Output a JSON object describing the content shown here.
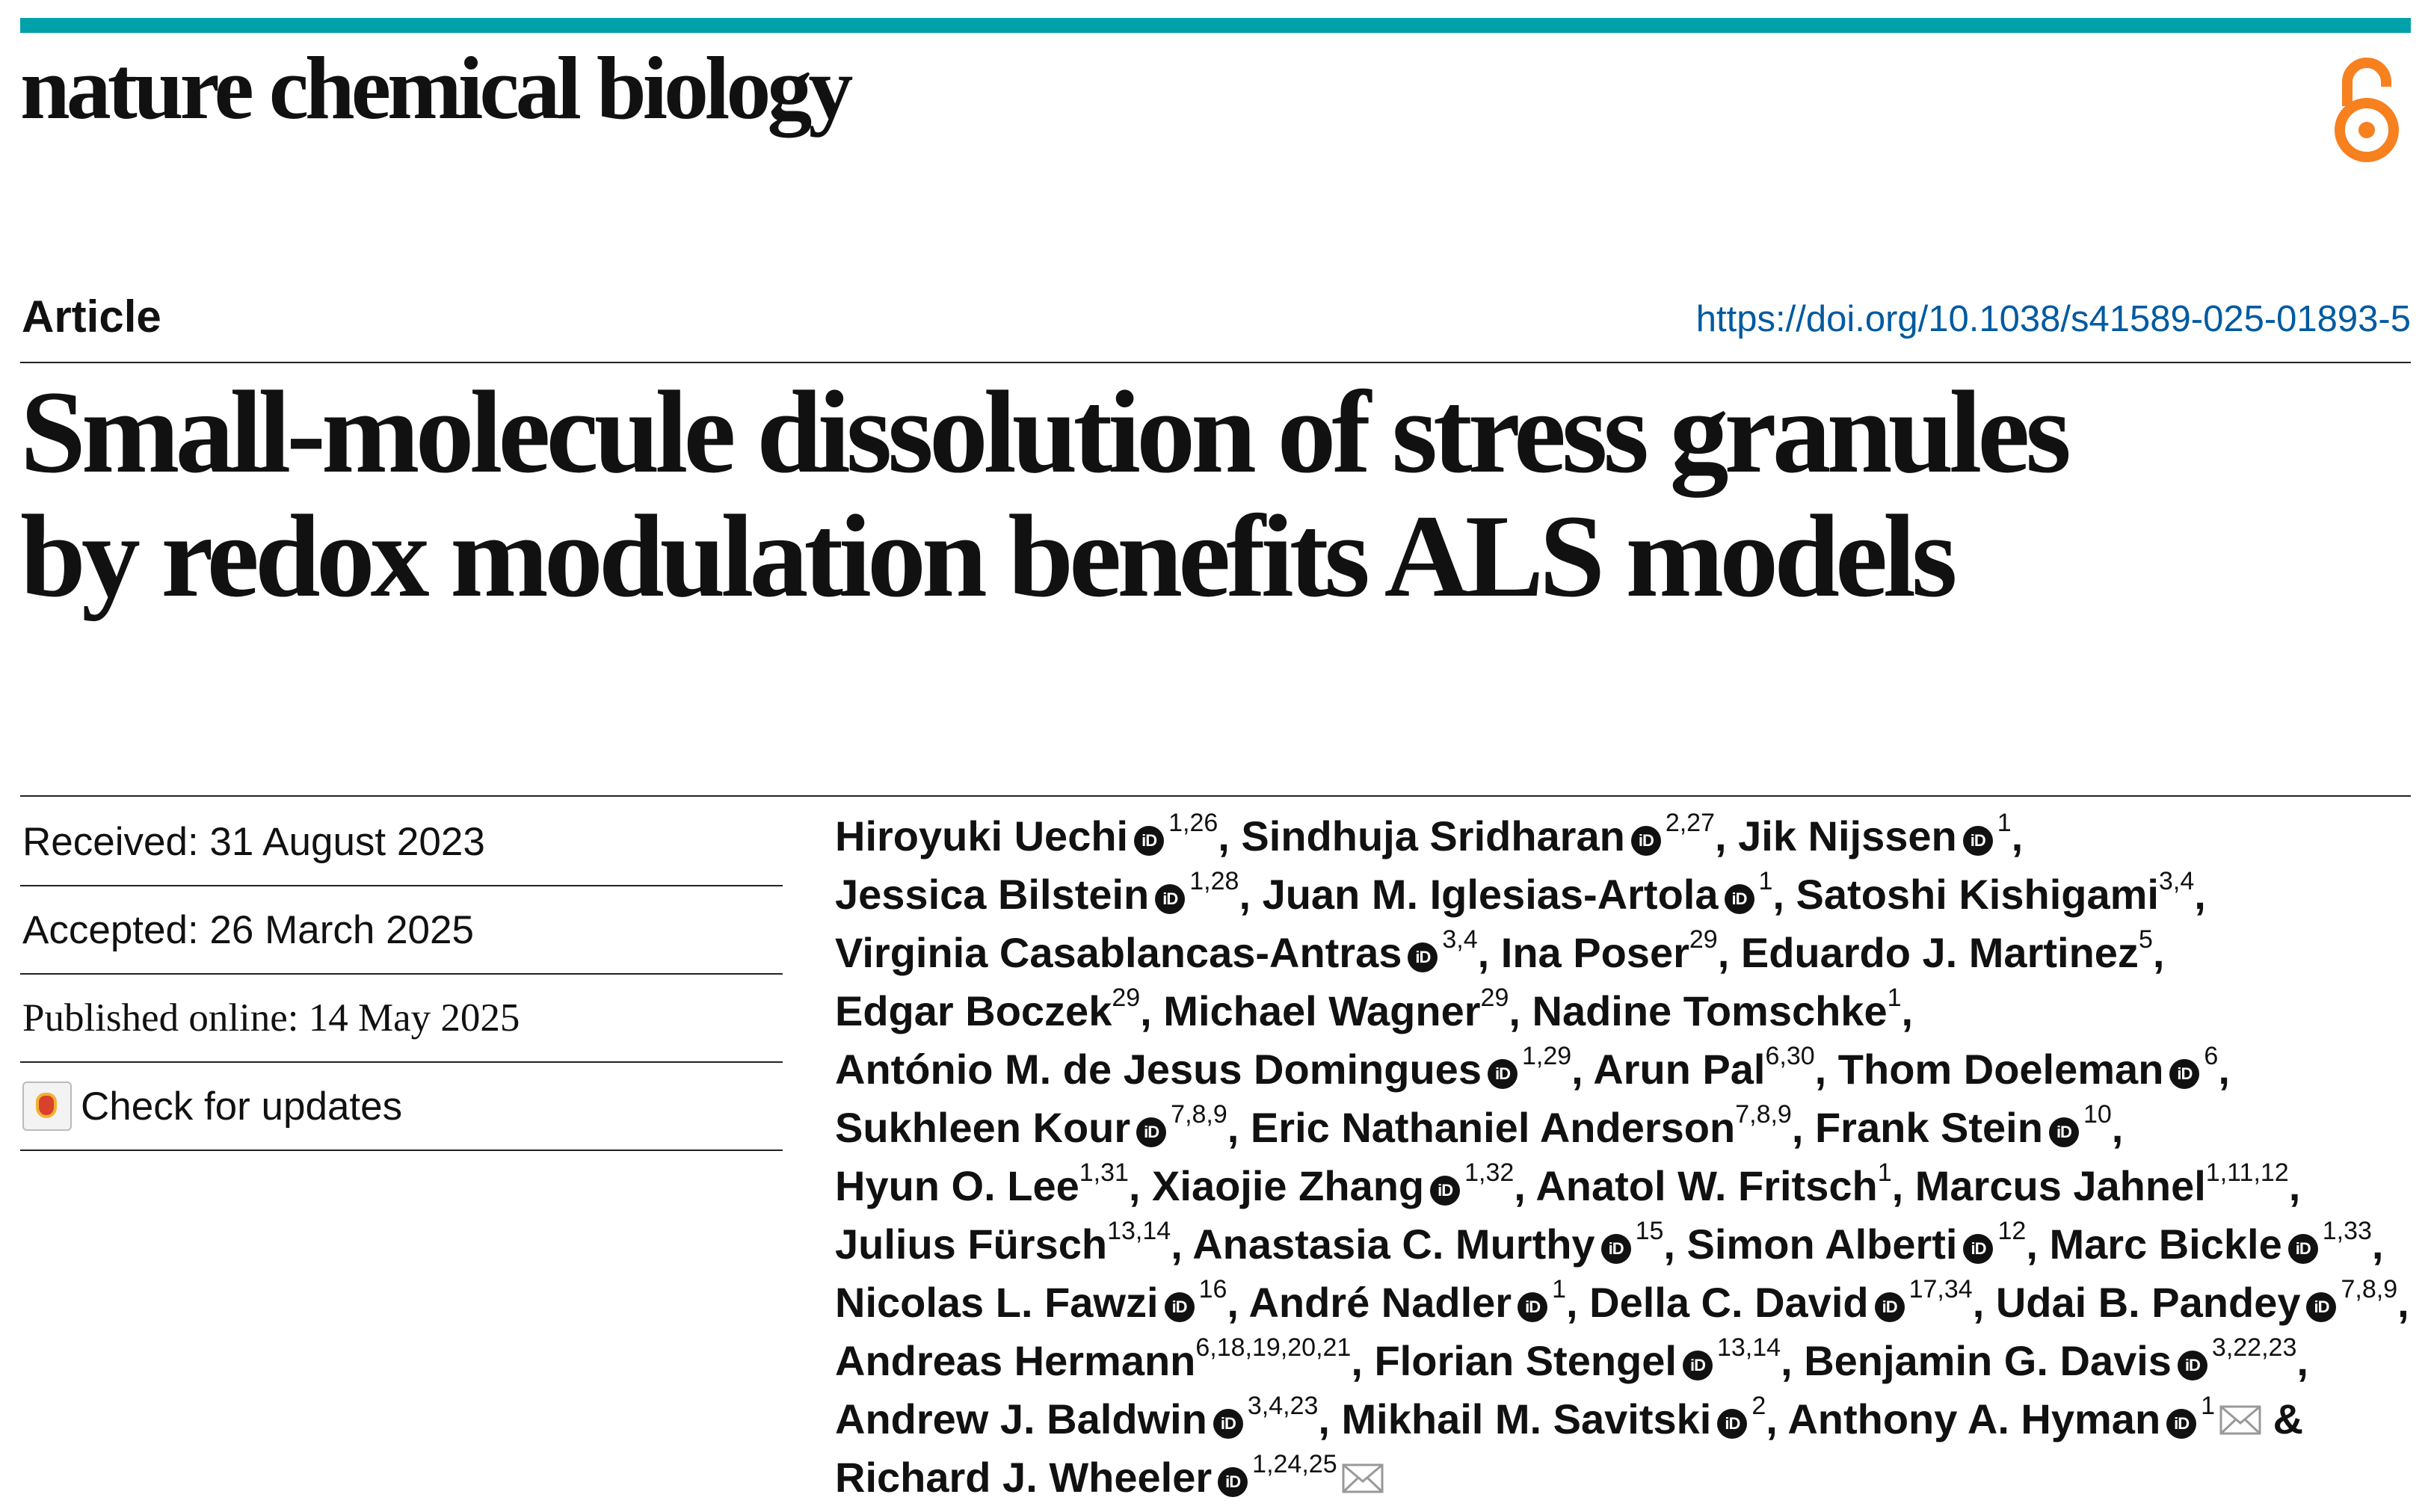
{
  "header": {
    "journal_name": "nature chemical biology",
    "accent_color": "#00a1a9",
    "open_access_icon": "open-access-lock-icon",
    "open_access_color": "#f7801f"
  },
  "article": {
    "type": "Article",
    "doi": "https://doi.org/10.1038/s41589-025-01893-5",
    "title_line1": "Small-molecule dissolution of stress granules",
    "title_line2": "by redox modulation benefits ALS models"
  },
  "dates": {
    "received": "Received: 31 August 2023",
    "accepted": "Accepted: 26 March 2025",
    "published": "Published online: 14 May 2025",
    "check_updates": "Check for updates"
  },
  "authors": [
    {
      "name": "Hiroyuki Uechi",
      "orcid": true,
      "sup": "1,26",
      "sep": ", "
    },
    {
      "name": "Sindhuja Sridharan",
      "orcid": true,
      "sup": "2,27",
      "sep": ", "
    },
    {
      "name": "Jik Nijssen",
      "orcid": true,
      "sup": "1",
      "sep": ", "
    },
    {
      "name": "Jessica Bilstein",
      "orcid": true,
      "sup": "1,28",
      "sep": ", "
    },
    {
      "name": "Juan M. Iglesias-Artola",
      "orcid": true,
      "sup": "1",
      "sep": ", "
    },
    {
      "name": "Satoshi Kishigami",
      "orcid": false,
      "sup": "3,4",
      "sep": ", "
    },
    {
      "name": "Virginia Casablancas-Antras",
      "orcid": true,
      "sup": "3,4",
      "sep": ", "
    },
    {
      "name": "Ina Poser",
      "orcid": false,
      "sup": "29",
      "sep": ", "
    },
    {
      "name": "Eduardo J. Martinez",
      "orcid": false,
      "sup": "5",
      "sep": ", "
    },
    {
      "name": "Edgar Boczek",
      "orcid": false,
      "sup": "29",
      "sep": ", "
    },
    {
      "name": "Michael Wagner",
      "orcid": false,
      "sup": "29",
      "sep": ", "
    },
    {
      "name": "Nadine Tomschke",
      "orcid": false,
      "sup": "1",
      "sep": ", "
    },
    {
      "name": "António M. de Jesus Domingues",
      "orcid": true,
      "sup": "1,29",
      "sep": ", "
    },
    {
      "name": "Arun Pal",
      "orcid": false,
      "sup": "6,30",
      "sep": ", "
    },
    {
      "name": "Thom Doeleman",
      "orcid": true,
      "sup": "6",
      "sep": ", "
    },
    {
      "name": "Sukhleen Kour",
      "orcid": true,
      "sup": "7,8,9",
      "sep": ", "
    },
    {
      "name": "Eric Nathaniel Anderson",
      "orcid": false,
      "sup": "7,8,9",
      "sep": ", "
    },
    {
      "name": "Frank Stein",
      "orcid": true,
      "sup": "10",
      "sep": ", "
    },
    {
      "name": "Hyun O. Lee",
      "orcid": false,
      "sup": "1,31",
      "sep": ", "
    },
    {
      "name": "Xiaojie Zhang",
      "orcid": true,
      "sup": "1,32",
      "sep": ", "
    },
    {
      "name": "Anatol W. Fritsch",
      "orcid": false,
      "sup": "1",
      "sep": ", "
    },
    {
      "name": "Marcus Jahnel",
      "orcid": false,
      "sup": "1,11,12",
      "sep": ", "
    },
    {
      "name": "Julius Fürsch",
      "orcid": false,
      "sup": "13,14",
      "sep": ", "
    },
    {
      "name": "Anastasia C. Murthy",
      "orcid": true,
      "sup": "15",
      "sep": ", "
    },
    {
      "name": "Simon Alberti",
      "orcid": true,
      "sup": "12",
      "sep": ", "
    },
    {
      "name": "Marc Bickle",
      "orcid": true,
      "sup": "1,33",
      "sep": ", "
    },
    {
      "name": "Nicolas L. Fawzi",
      "orcid": true,
      "sup": "16",
      "sep": ", "
    },
    {
      "name": "André Nadler",
      "orcid": true,
      "sup": "1",
      "sep": ", "
    },
    {
      "name": "Della C. David",
      "orcid": true,
      "sup": "17,34",
      "sep": ", "
    },
    {
      "name": "Udai B. Pandey",
      "orcid": true,
      "sup": "7,8,9",
      "sep": ", "
    },
    {
      "name": "Andreas Hermann",
      "orcid": false,
      "sup": "6,18,19,20,21",
      "sep": ", "
    },
    {
      "name": "Florian Stengel",
      "orcid": true,
      "sup": "13,14",
      "sep": ", "
    },
    {
      "name": "Benjamin G. Davis",
      "orcid": true,
      "sup": "3,22,23",
      "sep": ", "
    },
    {
      "name": "Andrew J. Baldwin",
      "orcid": true,
      "sup": "3,4,23",
      "sep": ", "
    },
    {
      "name": "Mikhail M. Savitski",
      "orcid": true,
      "sup": "2",
      "sep": ", "
    },
    {
      "name": "Anthony A. Hyman",
      "orcid": true,
      "sup": "1",
      "mail": true,
      "sep": " & "
    },
    {
      "name": "Richard J. Wheeler",
      "orcid": true,
      "sup": "1,24,25",
      "mail": true,
      "sep": ""
    }
  ],
  "author_lines": [
    [
      0,
      1,
      2
    ],
    [
      3,
      4,
      5
    ],
    [
      6,
      7,
      8
    ],
    [
      9,
      10,
      11
    ],
    [
      12,
      13,
      14
    ],
    [
      15,
      16,
      17
    ],
    [
      18,
      19,
      20,
      21
    ],
    [
      22,
      23,
      24,
      25
    ],
    [
      26,
      27,
      28,
      29
    ],
    [
      30,
      31,
      32
    ],
    [
      33,
      34,
      35
    ],
    [
      36
    ]
  ],
  "icons": {
    "orcid": "iD",
    "mail": "envelope-icon",
    "check_updates": "crossmark-icon"
  }
}
